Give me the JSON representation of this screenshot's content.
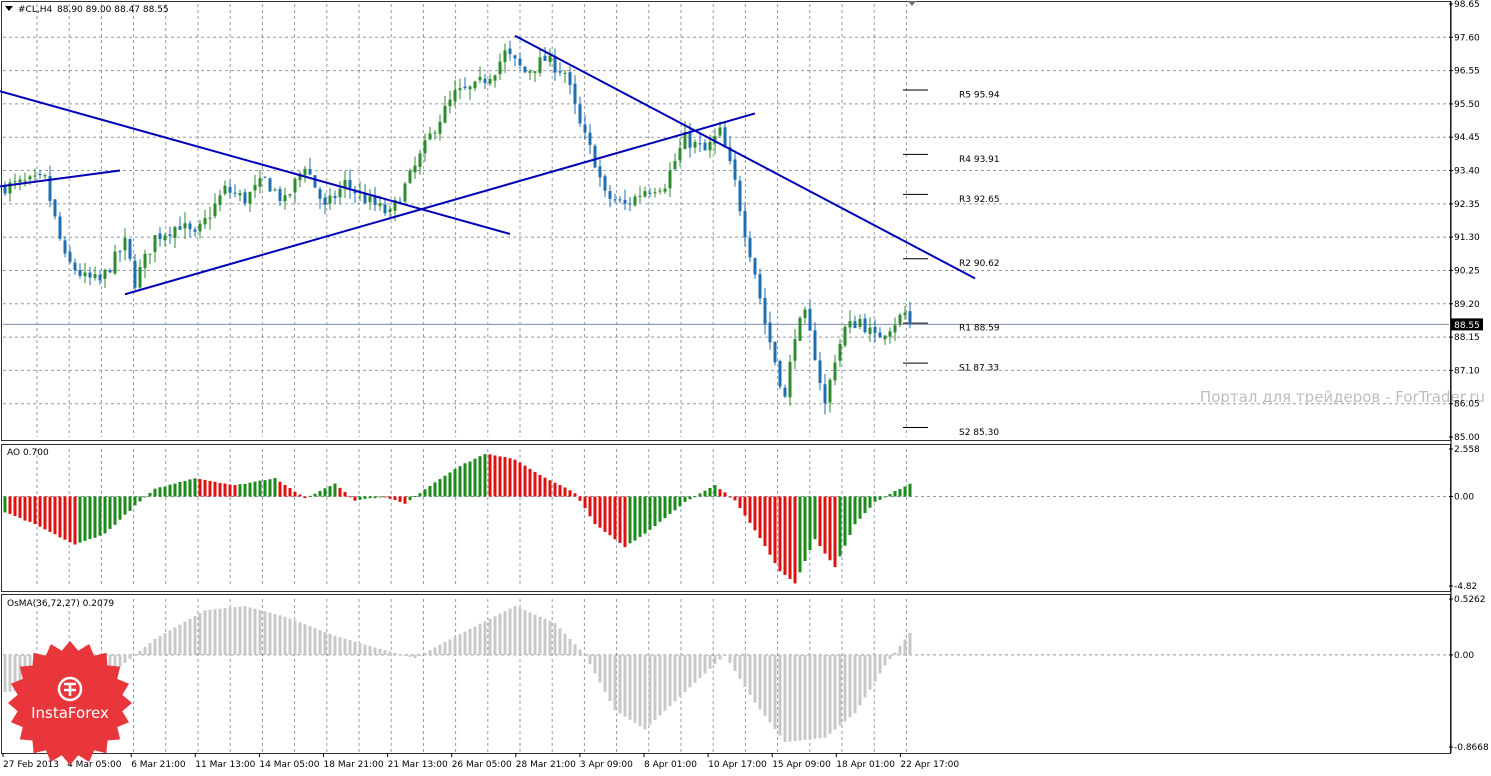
{
  "window": {
    "title": "#CL,H4",
    "ohlc": "88.90 89.00 88.47 88.55",
    "current_price_tag": "88.55"
  },
  "watermark": {
    "text": "Портал для трейдеров - ForTrader.ru"
  },
  "logo": {
    "text": "InstaForex",
    "color": "#e8363a"
  },
  "colors": {
    "candle_up": "#2e8b2e",
    "candle_down": "#1f6fb0",
    "trendline": "#0000b8",
    "ao_up": "#1a8a1a",
    "ao_down": "#e01010",
    "osma": "#c8c8c8",
    "grid": "#6c7a8c",
    "separator": "#303030"
  },
  "chart_data": [
    {
      "type": "candlestick",
      "panel": "price",
      "yaxis_ticks": [
        "98.65",
        "97.60",
        "96.55",
        "95.50",
        "94.45",
        "93.40",
        "92.35",
        "91.30",
        "90.25",
        "89.20",
        "88.15",
        "87.10",
        "86.05",
        "85.00"
      ],
      "ylim": [
        85.0,
        98.65
      ],
      "current_price": 88.55,
      "x_ticks": [
        "27 Feb 2013",
        "4 Mar 05:00",
        "6 Mar 21:00",
        "11 Mar 13:00",
        "14 Mar 05:00",
        "18 Mar 21:00",
        "21 Mar 13:00",
        "26 Mar 05:00",
        "28 Mar 21:00",
        "3 Apr 09:00",
        "8 Apr 01:00",
        "10 Apr 17:00",
        "15 Apr 09:00",
        "18 Apr 01:00",
        "22 Apr 17:00"
      ],
      "close_path": [
        [
          0,
          92.9
        ],
        [
          8,
          93.1
        ],
        [
          12,
          90.6
        ],
        [
          16,
          90.0
        ],
        [
          19,
          89.9
        ],
        [
          24,
          91.1
        ],
        [
          26,
          89.9
        ],
        [
          30,
          91.3
        ],
        [
          35,
          91.7
        ],
        [
          38,
          91.3
        ],
        [
          44,
          92.8
        ],
        [
          48,
          92.5
        ],
        [
          52,
          93.1
        ],
        [
          56,
          92.4
        ],
        [
          60,
          93.6
        ],
        [
          64,
          92.2
        ],
        [
          68,
          93.0
        ],
        [
          72,
          92.5
        ],
        [
          77,
          92.0
        ],
        [
          82,
          93.5
        ],
        [
          86,
          94.8
        ],
        [
          90,
          95.8
        ],
        [
          94,
          96.0
        ],
        [
          98,
          96.6
        ],
        [
          100,
          97.1
        ],
        [
          104,
          96.5
        ],
        [
          108,
          96.9
        ],
        [
          112,
          96.5
        ],
        [
          115,
          94.8
        ],
        [
          118,
          93.7
        ],
        [
          120,
          92.6
        ],
        [
          124,
          92.3
        ],
        [
          128,
          92.8
        ],
        [
          132,
          93.0
        ],
        [
          136,
          94.4
        ],
        [
          140,
          94.0
        ],
        [
          143,
          94.6
        ],
        [
          146,
          93.0
        ],
        [
          148,
          91.5
        ],
        [
          150,
          90.2
        ],
        [
          152,
          88.6
        ],
        [
          154,
          87.4
        ],
        [
          156,
          86.2
        ],
        [
          158,
          88.3
        ],
        [
          160,
          88.8
        ],
        [
          162,
          87.6
        ],
        [
          164,
          86.0
        ],
        [
          166,
          87.5
        ],
        [
          168,
          88.4
        ],
        [
          171,
          88.7
        ],
        [
          174,
          88.1
        ],
        [
          177,
          88.5
        ],
        [
          180,
          88.9
        ],
        [
          181,
          88.55
        ]
      ],
      "total_bars": 182,
      "trendlines": [
        {
          "name": "short-resistance-left",
          "from": [
            -1,
            92.9
          ],
          "to": [
            23,
            93.4
          ]
        },
        {
          "name": "long-falling-line",
          "from": [
            -1,
            95.9
          ],
          "to": [
            101,
            91.4
          ]
        },
        {
          "name": "rising-support-line",
          "from": [
            24,
            89.5
          ],
          "to": [
            150,
            95.2
          ]
        },
        {
          "name": "falling-resistance-line",
          "from": [
            102,
            97.65
          ],
          "to": [
            194,
            90.0
          ]
        }
      ],
      "pivot_levels": [
        {
          "label": "R5",
          "value": "95.94",
          "level": 95.94
        },
        {
          "label": "R4",
          "value": "93.91",
          "level": 93.91
        },
        {
          "label": "R3",
          "value": "92.65",
          "level": 92.65
        },
        {
          "label": "R2",
          "value": "90.62",
          "level": 90.62
        },
        {
          "label": "R1",
          "value": "88.59",
          "level": 88.59
        },
        {
          "label": "S1",
          "value": "87.33",
          "level": 87.33
        },
        {
          "label": "S2",
          "value": "85.30",
          "level": 85.3
        }
      ]
    },
    {
      "type": "bar",
      "panel": "ao",
      "title": "AO 0.700",
      "yaxis_ticks": [
        "2.558",
        "0.00",
        "-4.82"
      ],
      "ylim": [
        -4.82,
        2.558
      ],
      "last_value": 0.7,
      "shape_points": [
        [
          0,
          -0.85
        ],
        [
          6,
          -1.5
        ],
        [
          14,
          -2.6
        ],
        [
          20,
          -2.0
        ],
        [
          26,
          -0.5
        ],
        [
          30,
          0.4
        ],
        [
          38,
          1.0
        ],
        [
          46,
          0.6
        ],
        [
          54,
          1.0
        ],
        [
          60,
          -0.1
        ],
        [
          66,
          0.7
        ],
        [
          70,
          -0.2
        ],
        [
          76,
          0.0
        ],
        [
          80,
          -0.4
        ],
        [
          84,
          0.4
        ],
        [
          90,
          1.5
        ],
        [
          96,
          2.3
        ],
        [
          102,
          2.0
        ],
        [
          108,
          1.0
        ],
        [
          114,
          0.2
        ],
        [
          118,
          -1.5
        ],
        [
          124,
          -2.7
        ],
        [
          128,
          -2.0
        ],
        [
          136,
          -0.3
        ],
        [
          142,
          0.6
        ],
        [
          146,
          -0.2
        ],
        [
          150,
          -1.8
        ],
        [
          155,
          -4.0
        ],
        [
          158,
          -4.7
        ],
        [
          162,
          -2.3
        ],
        [
          166,
          -3.8
        ],
        [
          170,
          -1.5
        ],
        [
          174,
          -0.3
        ],
        [
          181,
          0.7
        ]
      ]
    },
    {
      "type": "bar",
      "panel": "osma",
      "title": "OsMA(36,72,27) 0.2079",
      "yaxis_ticks": [
        "0.5262",
        "0.00",
        "-0.8668"
      ],
      "ylim": [
        -0.8668,
        0.5262
      ],
      "last_value": 0.2079,
      "shape_points": [
        [
          0,
          -0.35
        ],
        [
          12,
          -0.3
        ],
        [
          22,
          -0.15
        ],
        [
          30,
          0.15
        ],
        [
          40,
          0.42
        ],
        [
          48,
          0.46
        ],
        [
          56,
          0.36
        ],
        [
          66,
          0.18
        ],
        [
          74,
          0.07
        ],
        [
          82,
          -0.03
        ],
        [
          92,
          0.22
        ],
        [
          102,
          0.46
        ],
        [
          110,
          0.3
        ],
        [
          116,
          0.0
        ],
        [
          122,
          -0.52
        ],
        [
          128,
          -0.7
        ],
        [
          136,
          -0.35
        ],
        [
          144,
          0.0
        ],
        [
          150,
          -0.45
        ],
        [
          156,
          -0.82
        ],
        [
          164,
          -0.78
        ],
        [
          170,
          -0.55
        ],
        [
          176,
          -0.1
        ],
        [
          181,
          0.2079
        ]
      ]
    }
  ]
}
